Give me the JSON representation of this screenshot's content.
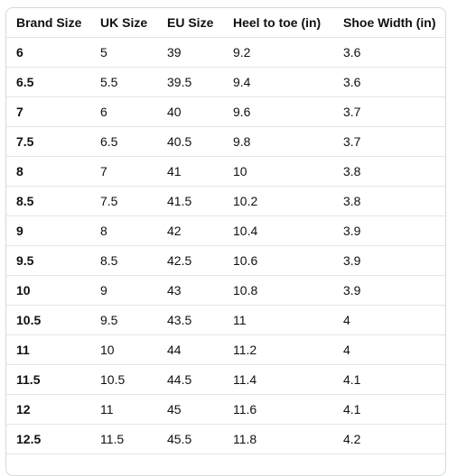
{
  "table": {
    "headers": [
      "Brand Size",
      "UK Size",
      "EU Size",
      "Heel to toe (in)",
      "Shoe Width (in)"
    ],
    "rows": [
      [
        "6",
        "5",
        "39",
        "9.2",
        "3.6"
      ],
      [
        "6.5",
        "5.5",
        "39.5",
        "9.4",
        "3.6"
      ],
      [
        "7",
        "6",
        "40",
        "9.6",
        "3.7"
      ],
      [
        "7.5",
        "6.5",
        "40.5",
        "9.8",
        "3.7"
      ],
      [
        "8",
        "7",
        "41",
        "10",
        "3.8"
      ],
      [
        "8.5",
        "7.5",
        "41.5",
        "10.2",
        "3.8"
      ],
      [
        "9",
        "8",
        "42",
        "10.4",
        "3.9"
      ],
      [
        "9.5",
        "8.5",
        "42.5",
        "10.6",
        "3.9"
      ],
      [
        "10",
        "9",
        "43",
        "10.8",
        "3.9"
      ],
      [
        "10.5",
        "9.5",
        "43.5",
        "11",
        "4"
      ],
      [
        "11",
        "10",
        "44",
        "11.2",
        "4"
      ],
      [
        "11.5",
        "10.5",
        "44.5",
        "11.4",
        "4.1"
      ],
      [
        "12",
        "11",
        "45",
        "11.6",
        "4.1"
      ],
      [
        "12.5",
        "11.5",
        "45.5",
        "11.8",
        "4.2"
      ]
    ]
  }
}
